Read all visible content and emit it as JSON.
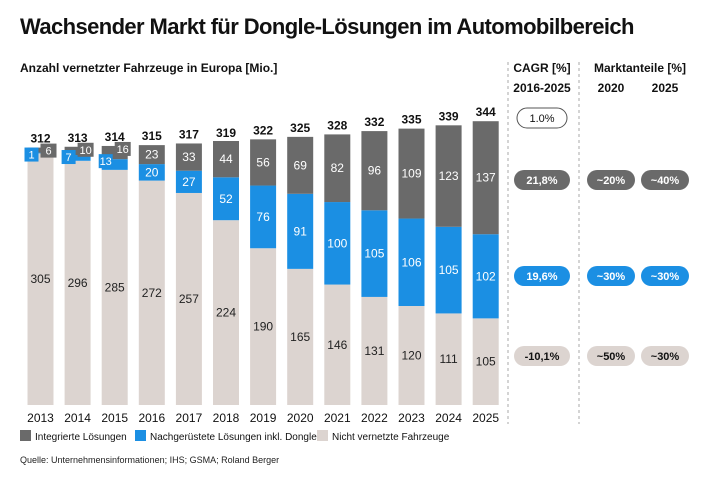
{
  "title": "Wachsender Markt für Dongle-Lösungen im Automobilbereich",
  "subtitle": "Anzahl vernetzter Fahrzeuge in Europa [Mio.]",
  "cagr_header": {
    "line1": "CAGR [%]",
    "line2": "2016-2025"
  },
  "share_header": {
    "line1": "Marktanteile [%]",
    "col2020": "2020",
    "col2025": "2025"
  },
  "colors": {
    "integrated": "#6a6a6a",
    "retrofit": "#1b8fe3",
    "unconnected": "#dcd4d0"
  },
  "chart_data": {
    "type": "bar",
    "stacked": true,
    "title": "Wachsender Markt für Dongle-Lösungen im Automobilbereich",
    "ylabel": "Anzahl vernetzter Fahrzeuge in Europa [Mio.]",
    "categories": [
      "2013",
      "2014",
      "2015",
      "2016",
      "2017",
      "2018",
      "2019",
      "2020",
      "2021",
      "2022",
      "2023",
      "2024",
      "2025"
    ],
    "series": [
      {
        "key": "unconnected",
        "name": "Nicht vernetzte Fahrzeuge",
        "values": [
          305,
          296,
          285,
          272,
          257,
          224,
          190,
          165,
          146,
          131,
          120,
          111,
          105
        ]
      },
      {
        "key": "retrofit",
        "name": "Nachgerüstete Lösungen inkl. Dongle",
        "values": [
          1,
          7,
          13,
          20,
          27,
          52,
          76,
          91,
          100,
          105,
          106,
          105,
          102
        ]
      },
      {
        "key": "integrated",
        "name": "Integrierte Lösungen",
        "values": [
          6,
          10,
          16,
          23,
          33,
          44,
          56,
          69,
          82,
          96,
          109,
          123,
          137
        ]
      }
    ],
    "totals": [
      312,
      313,
      314,
      315,
      317,
      319,
      322,
      325,
      328,
      332,
      335,
      339,
      344
    ],
    "ylim": [
      0,
      350
    ],
    "legend": [
      "Integrierte Lösungen",
      "Nachgerüstete Lösungen inkl. Dongle",
      "Nicht vernetzte Fahrzeuge"
    ],
    "cagr": {
      "total": "1.0%",
      "integrated": "21,8%",
      "retrofit": "19,6%",
      "unconnected": "-10,1%"
    },
    "market_share": {
      "integrated": {
        "y2020": "~20%",
        "y2025": "~40%"
      },
      "retrofit": {
        "y2020": "~30%",
        "y2025": "~30%"
      },
      "unconnected": {
        "y2020": "~50%",
        "y2025": "~30%"
      }
    }
  },
  "source": "Quelle: Unternehmensinformationen; IHS; GSMA; Roland Berger"
}
